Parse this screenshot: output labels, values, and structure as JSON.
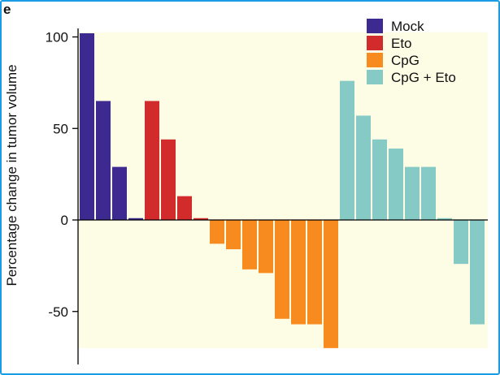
{
  "panel_label": "e",
  "colors": {
    "plot_background": "#fdfde6",
    "axis": "#000000"
  },
  "chart_data": {
    "type": "bar",
    "title": "",
    "xlabel": "",
    "ylabel": "Percentage change in tumor volume",
    "ylim": [
      -70,
      103
    ],
    "yticks": [
      100,
      50,
      0,
      -50
    ],
    "ytick_labels": [
      "100",
      "50",
      "0",
      "-50"
    ],
    "legend_position": "top-right",
    "series": [
      {
        "name": "Mock",
        "color": "#3d2a91",
        "values": [
          102,
          65,
          29,
          1
        ]
      },
      {
        "name": "Eto",
        "color": "#d22b2b",
        "values": [
          65,
          44,
          13,
          1
        ]
      },
      {
        "name": "CpG",
        "color": "#f78b1f",
        "values": [
          -13,
          -16,
          -27,
          -29,
          -54,
          -57,
          -57,
          -70
        ]
      },
      {
        "name": "CpG + Eto",
        "color": "#86cac6",
        "values": [
          76,
          57,
          44,
          39,
          29,
          29,
          1,
          -24,
          -57
        ]
      }
    ]
  }
}
